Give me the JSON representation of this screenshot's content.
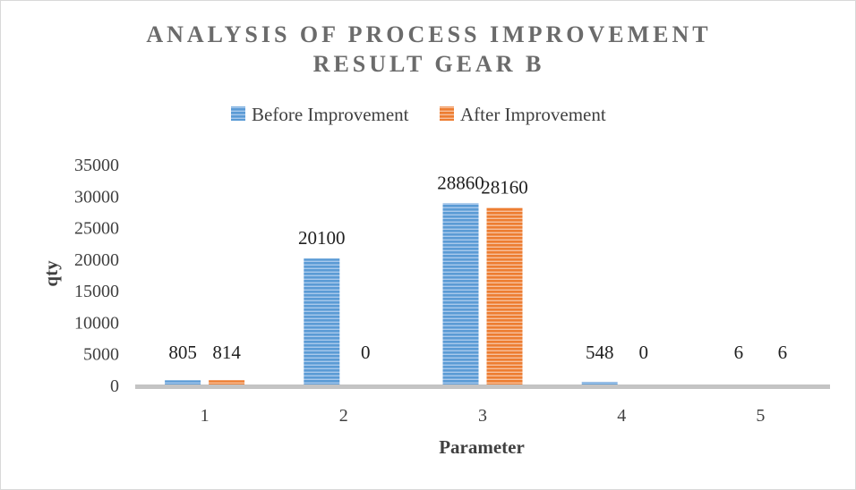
{
  "chart_data": {
    "type": "bar",
    "title_line1": "ANALYSIS OF PROCESS IMPROVEMENT",
    "title_line2": "RESULT GEAR B",
    "xlabel": "Parameter",
    "ylabel": "qty",
    "categories": [
      "1",
      "2",
      "3",
      "4",
      "5"
    ],
    "series": [
      {
        "name": "Before Improvement",
        "values": [
          805,
          20100,
          28860,
          548,
          6
        ],
        "color": "#5b9bd5"
      },
      {
        "name": "After Improvement",
        "values": [
          814,
          0,
          28160,
          0,
          6
        ],
        "color": "#ed7d31"
      }
    ],
    "ylim": [
      0,
      35000
    ],
    "yticks": [
      "0",
      "5000",
      "10000",
      "15000",
      "20000",
      "25000",
      "30000",
      "35000"
    ],
    "grid": false,
    "legend_position": "top",
    "data_labels": true
  }
}
